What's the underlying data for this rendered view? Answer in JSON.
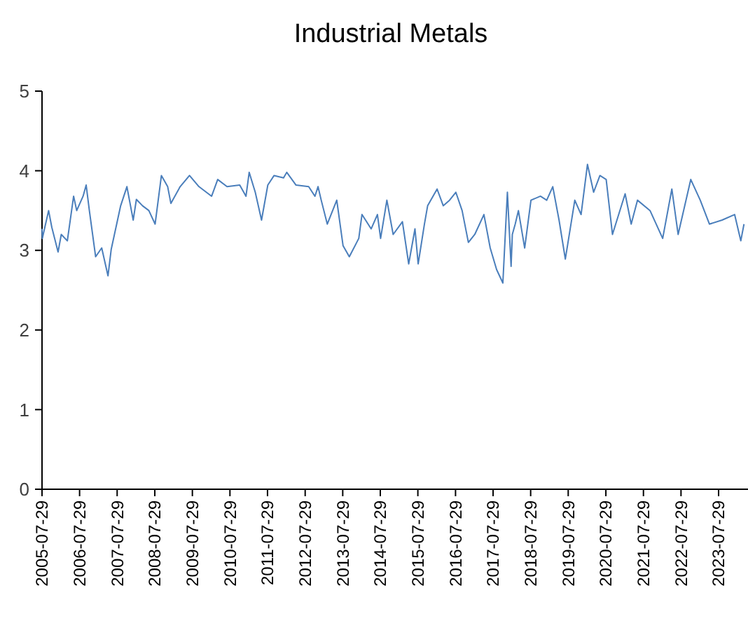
{
  "chart_data": {
    "type": "line",
    "title": "Industrial Metals",
    "x": [
      "2005-07-29",
      "2005-08",
      "2005-10",
      "2005-11",
      "2006-01",
      "2006-02",
      "2006-04",
      "2006-06",
      "2006-07",
      "2006-09",
      "2006-10",
      "2006-11",
      "2007-01",
      "2007-03",
      "2007-05",
      "2007-06",
      "2007-09",
      "2007-11",
      "2008-01",
      "2008-02",
      "2008-04",
      "2008-06",
      "2008-08",
      "2008-10",
      "2008-12",
      "2009-01",
      "2009-04",
      "2009-07",
      "2009-10",
      "2010-02",
      "2010-04",
      "2010-07",
      "2010-11",
      "2011-01",
      "2011-02",
      "2011-04",
      "2011-06",
      "2011-08",
      "2011-10",
      "2012-01",
      "2012-02",
      "2012-05",
      "2012-09",
      "2012-11",
      "2012-12",
      "2013-01",
      "2013-03",
      "2013-06",
      "2013-08",
      "2013-10",
      "2014-01",
      "2014-02",
      "2014-05",
      "2014-07",
      "2014-08",
      "2014-10",
      "2014-12",
      "2015-03",
      "2015-05",
      "2015-07",
      "2015-08",
      "2015-10",
      "2015-11",
      "2016-02",
      "2016-04",
      "2016-06",
      "2016-08",
      "2016-10",
      "2016-12",
      "2017-02",
      "2017-05",
      "2017-07",
      "2017-09",
      "2017-11",
      "2017-12-15",
      "2018-01-20",
      "2018-02",
      "2018-03",
      "2018-04",
      "2018-06",
      "2018-08",
      "2018-11",
      "2019-01",
      "2019-03",
      "2019-05",
      "2019-07",
      "2019-10",
      "2019-12",
      "2020-02",
      "2020-04",
      "2020-06",
      "2020-08",
      "2020-10",
      "2021-02",
      "2021-04",
      "2021-06",
      "2021-10",
      "2022-02",
      "2022-05",
      "2022-07",
      "2022-11",
      "2023-02",
      "2023-05",
      "2023-09",
      "2024-01",
      "2024-03",
      "2024-04"
    ],
    "series": [
      {
        "color": "#4a7ebb",
        "values": [
          3.27,
          3.15,
          3.5,
          3.29,
          2.98,
          3.2,
          3.12,
          3.68,
          3.5,
          3.68,
          3.82,
          3.5,
          2.92,
          3.03,
          2.68,
          3.01,
          3.56,
          3.8,
          3.38,
          3.64,
          3.56,
          3.5,
          3.33,
          3.94,
          3.8,
          3.59,
          3.8,
          3.94,
          3.8,
          3.68,
          3.89,
          3.8,
          3.82,
          3.68,
          3.98,
          3.73,
          3.38,
          3.82,
          3.94,
          3.91,
          3.98,
          3.82,
          3.8,
          3.68,
          3.8,
          3.63,
          3.33,
          3.63,
          3.06,
          2.92,
          3.15,
          3.45,
          3.27,
          3.45,
          3.15,
          3.63,
          3.2,
          3.36,
          2.83,
          3.27,
          2.83,
          3.33,
          3.56,
          3.77,
          3.56,
          3.63,
          3.73,
          3.5,
          3.1,
          3.2,
          3.45,
          3.03,
          2.76,
          2.59,
          3.73,
          2.8,
          3.2,
          3.33,
          3.5,
          3.03,
          3.63,
          3.68,
          3.63,
          3.8,
          3.38,
          2.89,
          3.63,
          3.45,
          4.08,
          3.73,
          3.94,
          3.89,
          3.2,
          3.71,
          3.33,
          3.63,
          3.5,
          3.15,
          3.77,
          3.2,
          3.89,
          3.63,
          3.33,
          3.38,
          3.45,
          3.12,
          3.33
        ]
      }
    ],
    "xlim": [
      "2005-07-29",
      "2024-05-10"
    ],
    "xticks": [
      "2005-07-29",
      "2006-07-29",
      "2007-07-29",
      "2008-07-29",
      "2009-07-29",
      "2010-07-29",
      "2011-07-29",
      "2012-07-29",
      "2013-07-29",
      "2014-07-29",
      "2015-07-29",
      "2016-07-29",
      "2017-07-29",
      "2018-07-29",
      "2019-07-29",
      "2020-07-29",
      "2021-07-29",
      "2022-07-29",
      "2023-07-29"
    ],
    "ylim": [
      0,
      5
    ],
    "yticks": [
      0,
      1,
      2,
      3,
      4,
      5
    ],
    "grid": false
  }
}
